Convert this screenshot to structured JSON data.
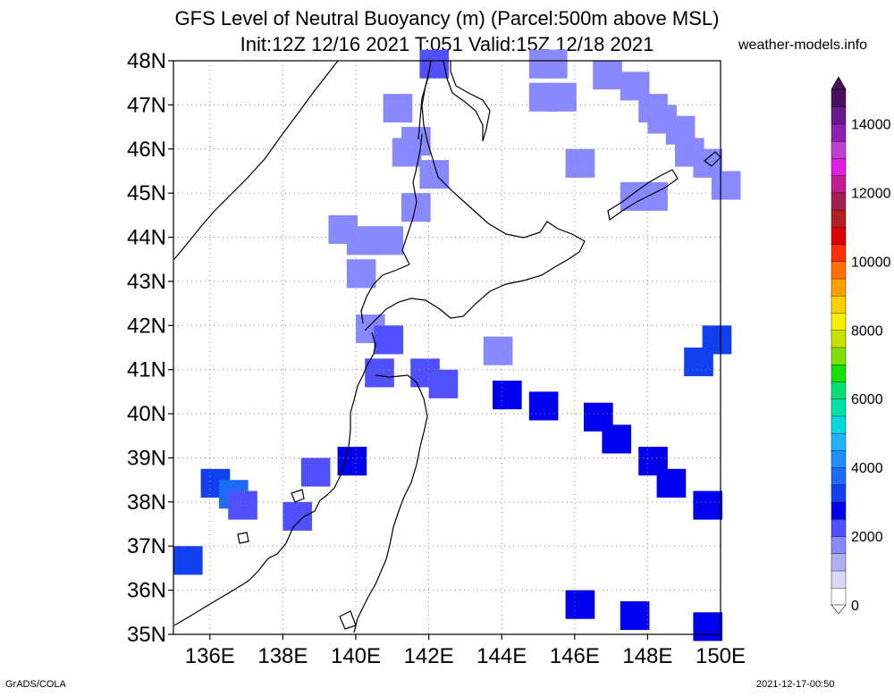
{
  "header": {
    "title_line1": "GFS Level of Neutral Buoyancy (m) (Parcel:500m above MSL)",
    "title_line2": "Init:12Z 12/16 2021 T:051 Valid:15Z 12/18 2021",
    "site": "weather-models.info"
  },
  "footer": {
    "credit": "GrADS/COLA",
    "timestamp": "2021-12-17-00:50"
  },
  "map": {
    "lat_labels": [
      "48N",
      "47N",
      "46N",
      "45N",
      "44N",
      "43N",
      "42N",
      "41N",
      "40N",
      "39N",
      "38N",
      "37N",
      "36N",
      "35N"
    ],
    "lon_labels": [
      "136E",
      "138E",
      "140E",
      "142E",
      "144E",
      "146E",
      "148E",
      "150E"
    ],
    "lat_range": [
      35,
      48
    ],
    "lon_range": [
      135,
      150
    ]
  },
  "colorbar": {
    "labels": [
      "0",
      "2000",
      "4000",
      "6000",
      "8000",
      "10000",
      "12000",
      "14000"
    ],
    "colors": [
      "#ffffff",
      "#d8d8f8",
      "#b0b0f0",
      "#8888ff",
      "#5050ff",
      "#0000ee",
      "#1040f0",
      "#1e6cf5",
      "#1e90ff",
      "#22b4ff",
      "#00d8e0",
      "#00e0a8",
      "#00e070",
      "#18e000",
      "#80e000",
      "#c8e000",
      "#f8f000",
      "#ffd000",
      "#ffa000",
      "#ff7000",
      "#ff3000",
      "#e00000",
      "#b02020",
      "#a02050",
      "#c02090",
      "#e020e0",
      "#c040d0",
      "#9020b0",
      "#6a1a8a",
      "#4a1060"
    ]
  },
  "chart_data": {
    "type": "heatmap",
    "units": "m",
    "cells": [
      {
        "lat": 48.0,
        "lon": 142.0,
        "v": 1800
      },
      {
        "lat": 48.0,
        "lon": 145.0,
        "v": 1600
      },
      {
        "lat": 48.0,
        "lon": 145.25,
        "v": 1600
      },
      {
        "lat": 47.75,
        "lon": 146.75,
        "v": 1700
      },
      {
        "lat": 47.5,
        "lon": 147.5,
        "v": 1700
      },
      {
        "lat": 47.25,
        "lon": 145.0,
        "v": 1600
      },
      {
        "lat": 47.25,
        "lon": 145.5,
        "v": 1600
      },
      {
        "lat": 47.0,
        "lon": 141.0,
        "v": 1700
      },
      {
        "lat": 47.0,
        "lon": 148.0,
        "v": 1700
      },
      {
        "lat": 46.75,
        "lon": 148.25,
        "v": 1700
      },
      {
        "lat": 46.5,
        "lon": 148.75,
        "v": 1700
      },
      {
        "lat": 46.25,
        "lon": 141.5,
        "v": 1700
      },
      {
        "lat": 46.0,
        "lon": 141.25,
        "v": 1700
      },
      {
        "lat": 46.0,
        "lon": 149.0,
        "v": 1700
      },
      {
        "lat": 45.75,
        "lon": 146.0,
        "v": 1700
      },
      {
        "lat": 45.75,
        "lon": 149.5,
        "v": 1700
      },
      {
        "lat": 45.5,
        "lon": 142.0,
        "v": 1700
      },
      {
        "lat": 45.25,
        "lon": 150.0,
        "v": 1700
      },
      {
        "lat": 45.0,
        "lon": 147.5,
        "v": 1700
      },
      {
        "lat": 45.0,
        "lon": 148.0,
        "v": 1700
      },
      {
        "lat": 44.75,
        "lon": 141.5,
        "v": 1700
      },
      {
        "lat": 44.25,
        "lon": 139.5,
        "v": 1700
      },
      {
        "lat": 44.0,
        "lon": 140.0,
        "v": 1700
      },
      {
        "lat": 44.0,
        "lon": 140.75,
        "v": 1700
      },
      {
        "lat": 43.25,
        "lon": 140.0,
        "v": 1700
      },
      {
        "lat": 42.0,
        "lon": 140.25,
        "v": 1700
      },
      {
        "lat": 41.75,
        "lon": 140.75,
        "v": 1800
      },
      {
        "lat": 41.0,
        "lon": 140.5,
        "v": 1800
      },
      {
        "lat": 41.0,
        "lon": 141.75,
        "v": 1800
      },
      {
        "lat": 41.5,
        "lon": 143.75,
        "v": 1700
      },
      {
        "lat": 40.75,
        "lon": 142.25,
        "v": 1800
      },
      {
        "lat": 40.5,
        "lon": 144.0,
        "v": 2300
      },
      {
        "lat": 40.25,
        "lon": 145.0,
        "v": 2400
      },
      {
        "lat": 40.0,
        "lon": 146.5,
        "v": 2600
      },
      {
        "lat": 39.5,
        "lon": 147.0,
        "v": 2600
      },
      {
        "lat": 39.0,
        "lon": 148.0,
        "v": 2500
      },
      {
        "lat": 38.5,
        "lon": 148.5,
        "v": 2400
      },
      {
        "lat": 38.0,
        "lon": 149.5,
        "v": 2400
      },
      {
        "lat": 41.75,
        "lon": 149.75,
        "v": 3200
      },
      {
        "lat": 41.25,
        "lon": 149.25,
        "v": 3100
      },
      {
        "lat": 39.0,
        "lon": 139.75,
        "v": 2600
      },
      {
        "lat": 38.75,
        "lon": 138.75,
        "v": 1900
      },
      {
        "lat": 38.5,
        "lon": 136.0,
        "v": 3100
      },
      {
        "lat": 38.25,
        "lon": 136.5,
        "v": 3400
      },
      {
        "lat": 38.0,
        "lon": 136.75,
        "v": 2200
      },
      {
        "lat": 37.75,
        "lon": 138.25,
        "v": 2100
      },
      {
        "lat": 36.75,
        "lon": 135.25,
        "v": 3000
      },
      {
        "lat": 35.75,
        "lon": 146.0,
        "v": 2400
      },
      {
        "lat": 35.5,
        "lon": 147.5,
        "v": 2600
      },
      {
        "lat": 35.25,
        "lon": 149.5,
        "v": 2700
      }
    ]
  }
}
